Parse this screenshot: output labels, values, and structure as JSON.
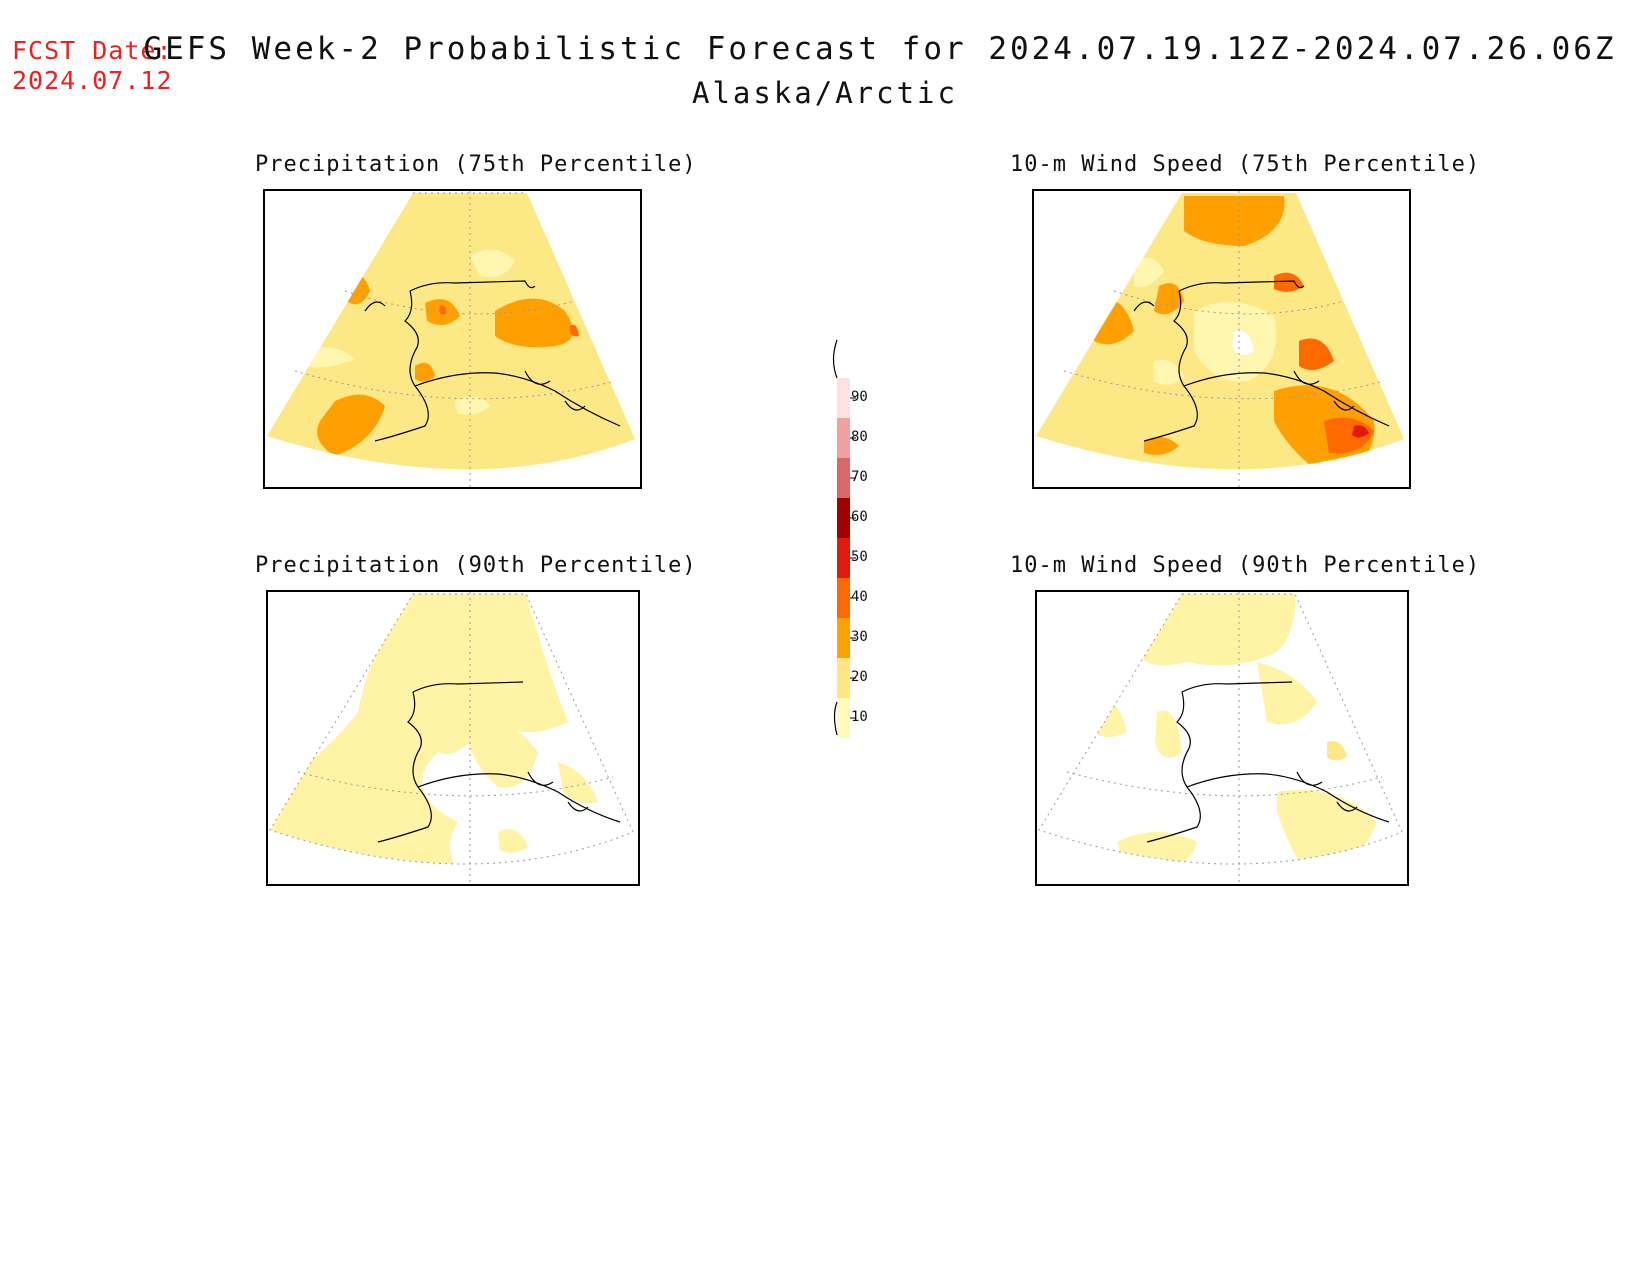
{
  "header": {
    "fcst_label": "FCST Date:",
    "fcst_date": "2024.07.12",
    "title": "GEFS Week-2 Probabilistic Forecast for 2024.07.19.12Z-2024.07.26.06Z",
    "region": "Alaska/Arctic"
  },
  "panels": [
    {
      "title": "Precipitation (75th Percentile)"
    },
    {
      "title": "10-m Wind Speed (75th Percentile)"
    },
    {
      "title": "Precipitation (90th Percentile)"
    },
    {
      "title": "10-m Wind Speed (90th Percentile)"
    }
  ],
  "legend": {
    "levels": [
      {
        "value": "90",
        "color": "#fbe3e3"
      },
      {
        "value": "80",
        "color": "#f0a0a0"
      },
      {
        "value": "70",
        "color": "#d8686a"
      },
      {
        "value": "60",
        "color": "#a00000"
      },
      {
        "value": "50",
        "color": "#e01b0a"
      },
      {
        "value": "40",
        "color": "#ff6a00"
      },
      {
        "value": "30",
        "color": "#ffa200"
      },
      {
        "value": "20",
        "color": "#ffe680"
      },
      {
        "value": "10",
        "color": "#fffbb8"
      }
    ]
  },
  "colors": {
    "light": "#fff7b0",
    "pale": "#fde886",
    "mid": "#ffa000",
    "dark": "#ff6a00",
    "red": "#e01b0a"
  }
}
